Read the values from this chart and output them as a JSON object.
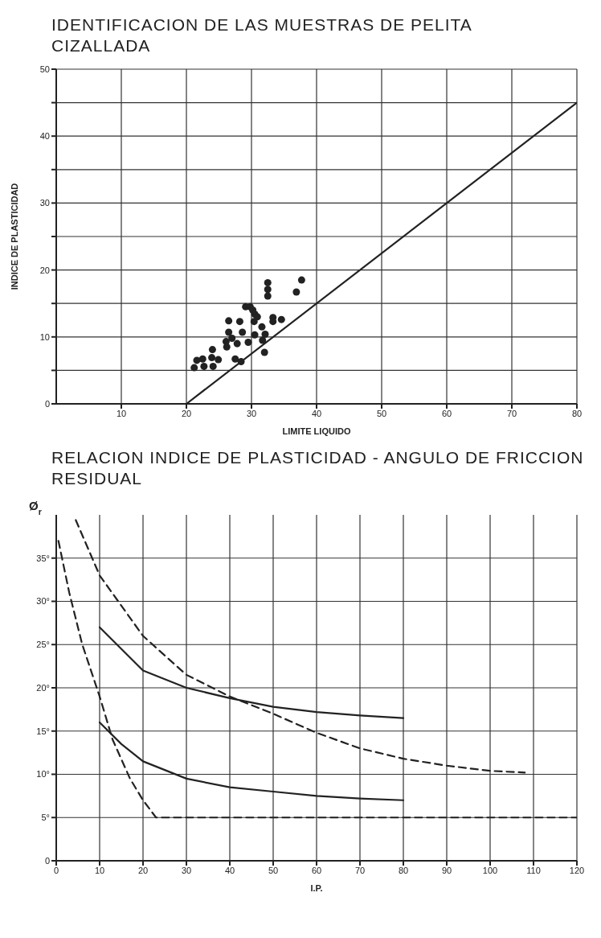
{
  "chart_data": [
    {
      "type": "scatter",
      "title": "IDENTIFICACION DE LAS MUESTRAS DE PELITA CIZALLADA",
      "xlabel": "LIMITE LIQUIDO",
      "ylabel": "INDICE DE PLASTICIDAD",
      "xlim": [
        0,
        80
      ],
      "ylim": [
        0,
        50
      ],
      "xticks": [
        10,
        20,
        30,
        40,
        50,
        60,
        70,
        80
      ],
      "yticks": [
        0,
        {
          "value": 5,
          "label": null
        },
        10,
        {
          "value": 15,
          "label": null
        },
        20,
        {
          "value": 25,
          "label": null
        },
        30,
        {
          "value": 35,
          "label": null
        },
        40,
        {
          "value": 45,
          "label": null
        },
        50
      ],
      "grid": true,
      "marker": "circle",
      "series": [
        {
          "color": "#222222",
          "x": [
            32.5,
            32.5,
            32.5,
            37.7,
            36.9,
            29.1,
            29.8,
            30.2,
            30.5,
            30.9,
            30.4,
            26.5,
            28.2,
            33.3,
            33.3,
            34.6,
            31.6,
            26.5,
            28.6,
            27.0,
            30.5,
            32.1,
            26.1,
            26.2,
            27.8,
            29.5,
            31.7,
            24.0,
            32.0,
            21.6,
            22.5,
            23.9,
            24.9,
            27.5,
            28.4,
            21.2,
            22.7,
            24.1
          ],
          "values": [
            18.1,
            17.1,
            16.1,
            18.5,
            16.7,
            14.5,
            14.5,
            14.0,
            13.4,
            13.0,
            12.3,
            12.4,
            12.3,
            12.9,
            12.3,
            12.6,
            11.5,
            10.7,
            10.7,
            9.8,
            10.3,
            10.4,
            9.3,
            8.5,
            9.0,
            9.2,
            9.5,
            8.1,
            7.7,
            6.5,
            6.7,
            6.9,
            6.6,
            6.7,
            6.3,
            5.4,
            5.6,
            5.6
          ]
        },
        {
          "type": "line",
          "color": "#222222",
          "marker": "none",
          "line_style": "solid",
          "x": [
            20,
            80
          ],
          "values": [
            0,
            45
          ]
        }
      ]
    },
    {
      "type": "line",
      "title": "RELACION INDICE DE PLASTICIDAD - ANGULO DE FRICCION RESIDUAL",
      "xlabel": "I.P.",
      "ylabel": "Ø$_{r}$",
      "xlim": [
        0,
        120
      ],
      "ylim": [
        0,
        40
      ],
      "xticks": [
        0,
        10,
        20,
        30,
        40,
        50,
        60,
        70,
        80,
        90,
        100,
        110,
        120
      ],
      "yticks": [
        0,
        {
          "value": 5,
          "label": "5°"
        },
        {
          "value": 10,
          "label": "10°"
        },
        {
          "value": 15,
          "label": "15°"
        },
        {
          "value": 20,
          "label": "20°"
        },
        {
          "value": 25,
          "label": "25°"
        },
        {
          "value": 30,
          "label": "30°"
        },
        {
          "value": 35,
          "label": "35°"
        }
      ],
      "grid": true,
      "marker": "none",
      "series": [
        {
          "color": "#222222",
          "line_style": "solid",
          "x": [
            10,
            20,
            30,
            40,
            50,
            60,
            70,
            80
          ],
          "values": [
            27,
            22,
            20,
            18.8,
            17.8,
            17.2,
            16.8,
            16.5
          ]
        },
        {
          "color": "#222222",
          "line_style": "solid",
          "x": [
            10,
            15,
            20,
            30,
            40,
            50,
            60,
            70,
            80
          ],
          "values": [
            16,
            13.5,
            11.5,
            9.5,
            8.5,
            8,
            7.5,
            7.2,
            7
          ]
        },
        {
          "color": "#222222",
          "line_style": "dashed",
          "x": [
            4.5,
            10,
            20,
            30,
            40,
            50,
            60,
            70,
            80,
            90,
            100,
            108
          ],
          "values": [
            39.4,
            33,
            26,
            21.5,
            19,
            17,
            14.8,
            13,
            11.8,
            11,
            10.4,
            10.2
          ]
        },
        {
          "color": "#222222",
          "line_style": "dashed",
          "x": [
            0.5,
            3,
            6,
            10,
            13,
            17,
            20,
            23,
            120
          ],
          "values": [
            37,
            31,
            25,
            19,
            14,
            9.5,
            7,
            5,
            5
          ]
        }
      ]
    }
  ]
}
